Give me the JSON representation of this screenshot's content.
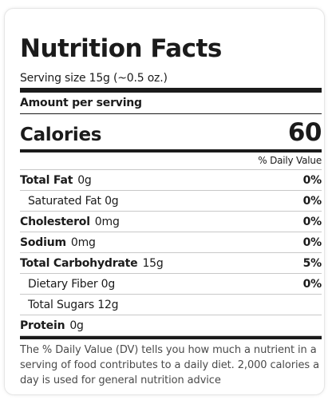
{
  "title": "Nutrition Facts",
  "serving_size": "Serving size 15g (~0.5 oz.)",
  "amount_per_serving": "Amount per serving",
  "calories": {
    "label": "Calories",
    "value": "60"
  },
  "daily_value_header": "% Daily Value",
  "nutrients": [
    {
      "name": "Total Fat",
      "amount": "0g",
      "dv": "0%"
    },
    {
      "name": "Saturated Fat 0g",
      "dv": "0%"
    },
    {
      "name": "Cholesterol",
      "amount": "0mg",
      "dv": "0%"
    },
    {
      "name": "Sodium",
      "amount": "0mg",
      "dv": "0%"
    },
    {
      "name": "Total Carbohydrate",
      "amount": "15g",
      "dv": "5%"
    },
    {
      "name": "Dietary Fiber 0g",
      "dv": "0%"
    },
    {
      "name": "Total Sugars 12g",
      "dv": ""
    },
    {
      "name": "Protein",
      "amount": "0g",
      "dv": ""
    }
  ],
  "footnote": "The % Daily Value (DV) tells you how much a nutrient in a serving of food contributes to a daily diet. 2,000 calories a day is used for general nutrition advice"
}
